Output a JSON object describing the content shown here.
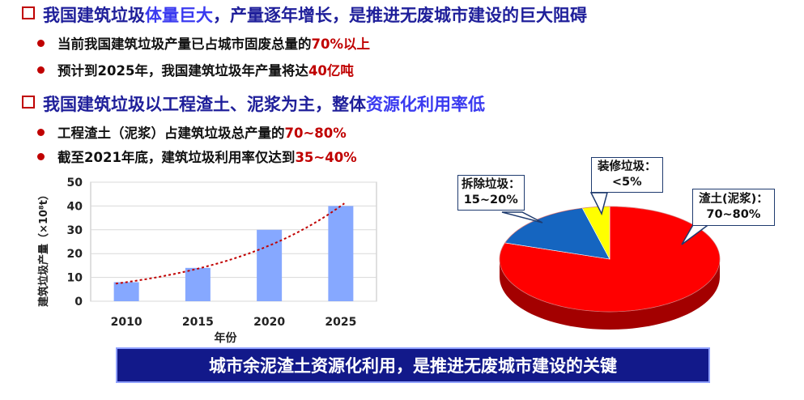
{
  "heading1": {
    "part1": "我国建筑垃圾",
    "part2": "体量巨大",
    "part3": "，产量逐年增长，是推进无废城市建设的巨大阻碍"
  },
  "bullets1": [
    {
      "text": "当前我国建筑垃圾产量已占城市固废总量的",
      "highlight": "70%以上"
    },
    {
      "text": "预计到2025年，我国建筑垃圾年产量将达",
      "highlight": "40亿吨"
    }
  ],
  "heading2": {
    "part1": "我国建筑垃圾以工程渣土、泥浆为主，整体",
    "part2": "资源化利用率低"
  },
  "bullets2": [
    {
      "text": "工程渣土（泥浆）占建筑垃圾总产量的",
      "highlight": "70~80%"
    },
    {
      "text": "截至2021年底，建筑垃圾利用率仅达到",
      "highlight": "35~40%"
    }
  ],
  "chart_data": [
    {
      "type": "bar",
      "categories": [
        "2010",
        "2015",
        "2020",
        "2025"
      ],
      "values": [
        8,
        14,
        30,
        40
      ],
      "xlabel": "年份",
      "ylabel": "建筑垃圾产量（×10⁸t）",
      "ylim": [
        0,
        50
      ],
      "yticks": [
        0,
        10,
        20,
        30,
        40,
        50
      ],
      "grid": true,
      "trendline": "exponential",
      "bar_color": "#86a8ff",
      "trend_color": "#c00000"
    },
    {
      "type": "pie",
      "slices": [
        {
          "label": "渣土(泥浆)：",
          "value_label": "70~80%",
          "value": 80,
          "color": "#ff0000"
        },
        {
          "label": "拆除垃圾：",
          "value_label": "15~20%",
          "value": 16,
          "color": "#1565c0"
        },
        {
          "label": "装修垃圾：",
          "value_label": "<5%",
          "value": 4,
          "color": "#ffff00"
        }
      ]
    }
  ],
  "banner": "城市余泥渣土资源化利用，是推进无废城市建设的关键"
}
